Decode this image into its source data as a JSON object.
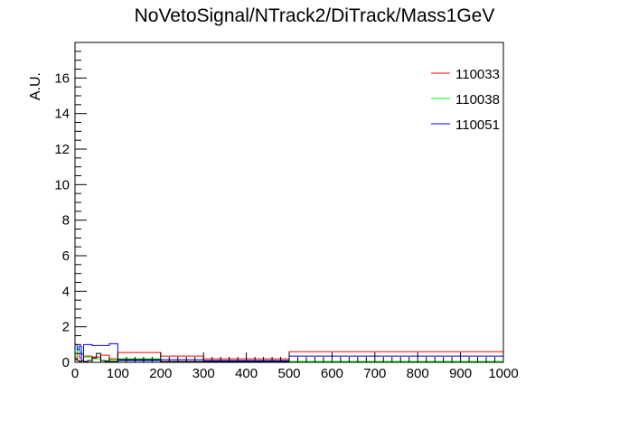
{
  "chart_data": {
    "type": "histogram",
    "title": "NoVetoSignal/NTrack2/DiTrack/Mass1GeV",
    "xlabel": "",
    "ylabel": "A.U.",
    "xlim": [
      0,
      1000
    ],
    "ylim": [
      0,
      18
    ],
    "x_ticks": [
      0,
      100,
      200,
      300,
      400,
      500,
      600,
      700,
      800,
      900,
      1000
    ],
    "y_ticks": [
      0,
      2,
      4,
      6,
      8,
      10,
      12,
      14,
      16
    ],
    "grid": false,
    "legend_position": "top-right",
    "series": [
      {
        "name": "110033",
        "color": "#ff0000",
        "bins": [
          {
            "x0": 0,
            "x1": 5,
            "y": 0.15
          },
          {
            "x0": 5,
            "x1": 10,
            "y": 0.5
          },
          {
            "x0": 10,
            "x1": 15,
            "y": 0.25
          },
          {
            "x0": 15,
            "x1": 20,
            "y": 0.45
          },
          {
            "x0": 20,
            "x1": 40,
            "y": 0.35
          },
          {
            "x0": 40,
            "x1": 60,
            "y": 0.3
          },
          {
            "x0": 60,
            "x1": 80,
            "y": 0.4
          },
          {
            "x0": 80,
            "x1": 100,
            "y": 0.2
          },
          {
            "x0": 100,
            "x1": 200,
            "y": 0.55
          },
          {
            "x0": 200,
            "x1": 300,
            "y": 0.35
          },
          {
            "x0": 300,
            "x1": 500,
            "y": 0.2
          },
          {
            "x0": 500,
            "x1": 1000,
            "y": 0.6
          }
        ]
      },
      {
        "name": "110038",
        "color": "#00ff00",
        "bins": [
          {
            "x0": 0,
            "x1": 5,
            "y": 0.3
          },
          {
            "x0": 5,
            "x1": 10,
            "y": 0.8
          },
          {
            "x0": 10,
            "x1": 15,
            "y": 0.6
          },
          {
            "x0": 15,
            "x1": 20,
            "y": 0.5
          },
          {
            "x0": 20,
            "x1": 40,
            "y": 0.3
          },
          {
            "x0": 40,
            "x1": 60,
            "y": 0.2
          },
          {
            "x0": 60,
            "x1": 80,
            "y": 0.1
          },
          {
            "x0": 80,
            "x1": 100,
            "y": 0.15
          },
          {
            "x0": 100,
            "x1": 200,
            "y": 0.2
          },
          {
            "x0": 200,
            "x1": 300,
            "y": 0.15
          },
          {
            "x0": 300,
            "x1": 500,
            "y": 0.1
          },
          {
            "x0": 500,
            "x1": 1000,
            "y": 0.05
          }
        ]
      },
      {
        "name": "110051",
        "color": "#0000ff",
        "bins": [
          {
            "x0": 0,
            "x1": 5,
            "y": 1.0
          },
          {
            "x0": 5,
            "x1": 10,
            "y": 0.7
          },
          {
            "x0": 10,
            "x1": 15,
            "y": 0.9
          },
          {
            "x0": 15,
            "x1": 20,
            "y": 0.1
          },
          {
            "x0": 20,
            "x1": 40,
            "y": 1.0
          },
          {
            "x0": 40,
            "x1": 60,
            "y": 0.95
          },
          {
            "x0": 60,
            "x1": 80,
            "y": 0.95
          },
          {
            "x0": 80,
            "x1": 100,
            "y": 1.05
          },
          {
            "x0": 100,
            "x1": 200,
            "y": 0.1
          },
          {
            "x0": 200,
            "x1": 300,
            "y": 0.15
          },
          {
            "x0": 300,
            "x1": 500,
            "y": 0.1
          },
          {
            "x0": 500,
            "x1": 1000,
            "y": 0.35
          }
        ]
      },
      {
        "name": "",
        "color": "#000000",
        "bins": [
          {
            "x0": 0,
            "x1": 5,
            "y": 0.2
          },
          {
            "x0": 5,
            "x1": 10,
            "y": 0.1
          },
          {
            "x0": 10,
            "x1": 15,
            "y": 0.05
          },
          {
            "x0": 15,
            "x1": 20,
            "y": 0.1
          },
          {
            "x0": 20,
            "x1": 30,
            "y": 0.05
          },
          {
            "x0": 30,
            "x1": 40,
            "y": 0.1
          },
          {
            "x0": 40,
            "x1": 50,
            "y": 0.25
          },
          {
            "x0": 50,
            "x1": 60,
            "y": 0.5
          },
          {
            "x0": 60,
            "x1": 70,
            "y": 0.1
          },
          {
            "x0": 70,
            "x1": 100,
            "y": 0.05
          },
          {
            "x0": 100,
            "x1": 200,
            "y": 0.15
          },
          {
            "x0": 200,
            "x1": 500,
            "y": 0.05
          },
          {
            "x0": 500,
            "x1": 1000,
            "y": 0.0
          }
        ]
      }
    ]
  }
}
